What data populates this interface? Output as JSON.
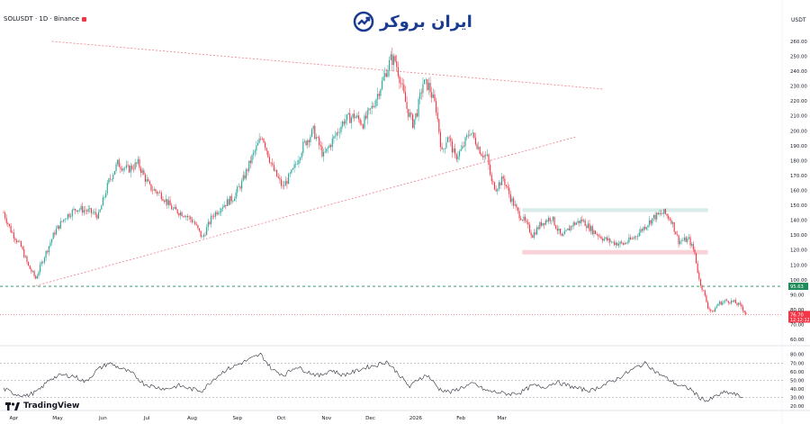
{
  "header": {
    "symbol": "SOLUSDT · 1D · Binance",
    "currency": "USDT",
    "brand": "ایران بروکر"
  },
  "footer": {
    "platform": "TradingView"
  },
  "colors": {
    "up": "#26a69a",
    "down": "#f23645",
    "trendline": "#f07d8a",
    "support_zone": "#d7ece8",
    "resistance_zone": "#f8d2d6",
    "level_line": "#1f8a5a",
    "brand": "#1a3b8f"
  },
  "chart_data": {
    "type": "candlestick",
    "timeframe": "1D",
    "x_tick_labels": [
      "Apr",
      "May",
      "Jun",
      "Jul",
      "Aug",
      "Sep",
      "Oct",
      "Nov",
      "Dec",
      "2026",
      "Feb",
      "Mar"
    ],
    "price_axis": {
      "ticks": [
        260,
        250,
        240,
        230,
        220,
        210,
        200,
        190,
        180,
        170,
        160,
        150,
        140,
        130,
        120,
        110,
        100,
        90,
        80,
        70,
        60
      ],
      "tick_labels": [
        "260.00",
        "250.00",
        "240.00",
        "230.00",
        "220.00",
        "210.00",
        "200.00",
        "190.00",
        "180.00",
        "170.00",
        "160.00",
        "150.00",
        "140.00",
        "130.00",
        "120.00",
        "110.00",
        "100.00",
        "90.00",
        "80.00",
        "70.00",
        "60.00"
      ],
      "ylim": [
        57,
        266
      ]
    },
    "series_points": [
      {
        "day": 0,
        "price": 145
      },
      {
        "day": 5,
        "price": 133
      },
      {
        "day": 12,
        "price": 122
      },
      {
        "day": 17,
        "price": 109
      },
      {
        "day": 22,
        "price": 101
      },
      {
        "day": 28,
        "price": 116
      },
      {
        "day": 35,
        "price": 132
      },
      {
        "day": 42,
        "price": 142
      },
      {
        "day": 50,
        "price": 148
      },
      {
        "day": 58,
        "price": 146
      },
      {
        "day": 65,
        "price": 143
      },
      {
        "day": 72,
        "price": 166
      },
      {
        "day": 78,
        "price": 178
      },
      {
        "day": 85,
        "price": 174
      },
      {
        "day": 92,
        "price": 178
      },
      {
        "day": 100,
        "price": 162
      },
      {
        "day": 108,
        "price": 157
      },
      {
        "day": 116,
        "price": 147
      },
      {
        "day": 124,
        "price": 144
      },
      {
        "day": 130,
        "price": 139
      },
      {
        "day": 136,
        "price": 128
      },
      {
        "day": 143,
        "price": 143
      },
      {
        "day": 150,
        "price": 150
      },
      {
        "day": 157,
        "price": 155
      },
      {
        "day": 163,
        "price": 165
      },
      {
        "day": 170,
        "price": 182
      },
      {
        "day": 177,
        "price": 197
      },
      {
        "day": 184,
        "price": 175
      },
      {
        "day": 191,
        "price": 162
      },
      {
        "day": 198,
        "price": 173
      },
      {
        "day": 205,
        "price": 190
      },
      {
        "day": 212,
        "price": 200
      },
      {
        "day": 219,
        "price": 183
      },
      {
        "day": 226,
        "price": 195
      },
      {
        "day": 233,
        "price": 207
      },
      {
        "day": 240,
        "price": 210
      },
      {
        "day": 246,
        "price": 205
      },
      {
        "day": 253,
        "price": 217
      },
      {
        "day": 260,
        "price": 235
      },
      {
        "day": 265,
        "price": 248
      },
      {
        "day": 268,
        "price": 247
      },
      {
        "day": 271,
        "price": 236
      },
      {
        "day": 276,
        "price": 215
      },
      {
        "day": 280,
        "price": 205
      },
      {
        "day": 283,
        "price": 213
      },
      {
        "day": 287,
        "price": 232
      },
      {
        "day": 291,
        "price": 230
      },
      {
        "day": 296,
        "price": 215
      },
      {
        "day": 300,
        "price": 185
      },
      {
        "day": 304,
        "price": 197
      },
      {
        "day": 309,
        "price": 182
      },
      {
        "day": 314,
        "price": 188
      },
      {
        "day": 319,
        "price": 200
      },
      {
        "day": 323,
        "price": 193
      },
      {
        "day": 327,
        "price": 185
      },
      {
        "day": 331,
        "price": 182
      },
      {
        "day": 334,
        "price": 165
      },
      {
        "day": 337,
        "price": 162
      },
      {
        "day": 342,
        "price": 168
      },
      {
        "day": 347,
        "price": 155
      },
      {
        "day": 352,
        "price": 145
      },
      {
        "day": 356,
        "price": 140
      },
      {
        "day": 362,
        "price": 130
      },
      {
        "day": 368,
        "price": 138
      },
      {
        "day": 375,
        "price": 142
      },
      {
        "day": 382,
        "price": 128
      },
      {
        "day": 389,
        "price": 137
      },
      {
        "day": 396,
        "price": 140
      },
      {
        "day": 403,
        "price": 133
      },
      {
        "day": 410,
        "price": 128
      },
      {
        "day": 417,
        "price": 125
      },
      {
        "day": 424,
        "price": 124
      },
      {
        "day": 431,
        "price": 128
      },
      {
        "day": 438,
        "price": 135
      },
      {
        "day": 445,
        "price": 142
      },
      {
        "day": 452,
        "price": 145
      },
      {
        "day": 457,
        "price": 140
      },
      {
        "day": 462,
        "price": 126
      },
      {
        "day": 469,
        "price": 127
      },
      {
        "day": 473,
        "price": 118
      },
      {
        "day": 476,
        "price": 100
      },
      {
        "day": 479,
        "price": 92
      },
      {
        "day": 482,
        "price": 82
      },
      {
        "day": 485,
        "price": 78
      },
      {
        "day": 489,
        "price": 84
      },
      {
        "day": 495,
        "price": 86
      },
      {
        "day": 500,
        "price": 85
      },
      {
        "day": 505,
        "price": 82
      },
      {
        "day": 508,
        "price": 77
      }
    ],
    "x_domain": [
      0,
      510
    ],
    "month_ticks": [
      {
        "day": 7,
        "label": "Apr"
      },
      {
        "day": 37,
        "label": "May"
      },
      {
        "day": 68,
        "label": "Jun"
      },
      {
        "day": 98,
        "label": "Jul"
      },
      {
        "day": 129,
        "label": "Aug"
      },
      {
        "day": 160,
        "label": "Sep"
      },
      {
        "day": 190,
        "label": "Oct"
      },
      {
        "day": 221,
        "label": "Nov"
      },
      {
        "day": 251,
        "label": "Dec"
      },
      {
        "day": 282,
        "label": "2026"
      },
      {
        "day": 313,
        "label": "Feb"
      },
      {
        "day": 341,
        "label": "Mar"
      }
    ],
    "horizontal_level": {
      "price": 95.63,
      "label": "95.63"
    },
    "last_price": {
      "value": 76.7,
      "label": "76.70",
      "countdown": "12:12:12"
    },
    "zones": [
      {
        "type": "support",
        "from_day": 355,
        "to_day": 482,
        "price_low": 145.5,
        "price_high": 148
      },
      {
        "type": "resistance",
        "from_day": 355,
        "to_day": 482,
        "price_low": 117,
        "price_high": 120
      }
    ],
    "trendlines": [
      {
        "from": {
          "day": 33,
          "price": 260
        },
        "to": {
          "day": 410,
          "price": 228
        }
      },
      {
        "from": {
          "day": 22,
          "price": 96
        },
        "to": {
          "day": 392,
          "price": 196
        }
      }
    ],
    "rsi": {
      "axis_ticks": [
        80,
        70,
        60,
        50,
        40,
        30,
        20
      ],
      "axis_tick_labels": [
        "80.00",
        "70.00",
        "60.00",
        "50.00",
        "40.00",
        "30.00",
        "20.00"
      ],
      "ylim": [
        17,
        86
      ],
      "levels": [
        70,
        50,
        30
      ],
      "points": [
        {
          "day": 0,
          "value": 40
        },
        {
          "day": 8,
          "value": 34
        },
        {
          "day": 16,
          "value": 32
        },
        {
          "day": 24,
          "value": 38
        },
        {
          "day": 32,
          "value": 52
        },
        {
          "day": 40,
          "value": 56
        },
        {
          "day": 48,
          "value": 55
        },
        {
          "day": 56,
          "value": 48
        },
        {
          "day": 64,
          "value": 62
        },
        {
          "day": 72,
          "value": 70
        },
        {
          "day": 80,
          "value": 64
        },
        {
          "day": 88,
          "value": 58
        },
        {
          "day": 96,
          "value": 46
        },
        {
          "day": 104,
          "value": 42
        },
        {
          "day": 112,
          "value": 40
        },
        {
          "day": 120,
          "value": 44
        },
        {
          "day": 128,
          "value": 40
        },
        {
          "day": 136,
          "value": 38
        },
        {
          "day": 144,
          "value": 52
        },
        {
          "day": 152,
          "value": 62
        },
        {
          "day": 160,
          "value": 68
        },
        {
          "day": 168,
          "value": 74
        },
        {
          "day": 176,
          "value": 80
        },
        {
          "day": 184,
          "value": 62
        },
        {
          "day": 192,
          "value": 56
        },
        {
          "day": 200,
          "value": 66
        },
        {
          "day": 208,
          "value": 60
        },
        {
          "day": 216,
          "value": 55
        },
        {
          "day": 224,
          "value": 62
        },
        {
          "day": 232,
          "value": 56
        },
        {
          "day": 240,
          "value": 60
        },
        {
          "day": 248,
          "value": 65
        },
        {
          "day": 256,
          "value": 68
        },
        {
          "day": 262,
          "value": 72
        },
        {
          "day": 270,
          "value": 58
        },
        {
          "day": 278,
          "value": 42
        },
        {
          "day": 284,
          "value": 52
        },
        {
          "day": 290,
          "value": 56
        },
        {
          "day": 298,
          "value": 40
        },
        {
          "day": 306,
          "value": 36
        },
        {
          "day": 314,
          "value": 42
        },
        {
          "day": 322,
          "value": 46
        },
        {
          "day": 330,
          "value": 38
        },
        {
          "day": 338,
          "value": 36
        },
        {
          "day": 346,
          "value": 34
        },
        {
          "day": 354,
          "value": 36
        },
        {
          "day": 362,
          "value": 44
        },
        {
          "day": 370,
          "value": 42
        },
        {
          "day": 378,
          "value": 48
        },
        {
          "day": 386,
          "value": 44
        },
        {
          "day": 394,
          "value": 40
        },
        {
          "day": 402,
          "value": 38
        },
        {
          "day": 410,
          "value": 44
        },
        {
          "day": 418,
          "value": 50
        },
        {
          "day": 426,
          "value": 58
        },
        {
          "day": 434,
          "value": 66
        },
        {
          "day": 440,
          "value": 70
        },
        {
          "day": 446,
          "value": 60
        },
        {
          "day": 454,
          "value": 52
        },
        {
          "day": 462,
          "value": 44
        },
        {
          "day": 470,
          "value": 40
        },
        {
          "day": 476,
          "value": 30
        },
        {
          "day": 482,
          "value": 26
        },
        {
          "day": 488,
          "value": 32
        },
        {
          "day": 494,
          "value": 36
        },
        {
          "day": 500,
          "value": 34
        },
        {
          "day": 506,
          "value": 30
        }
      ]
    }
  }
}
